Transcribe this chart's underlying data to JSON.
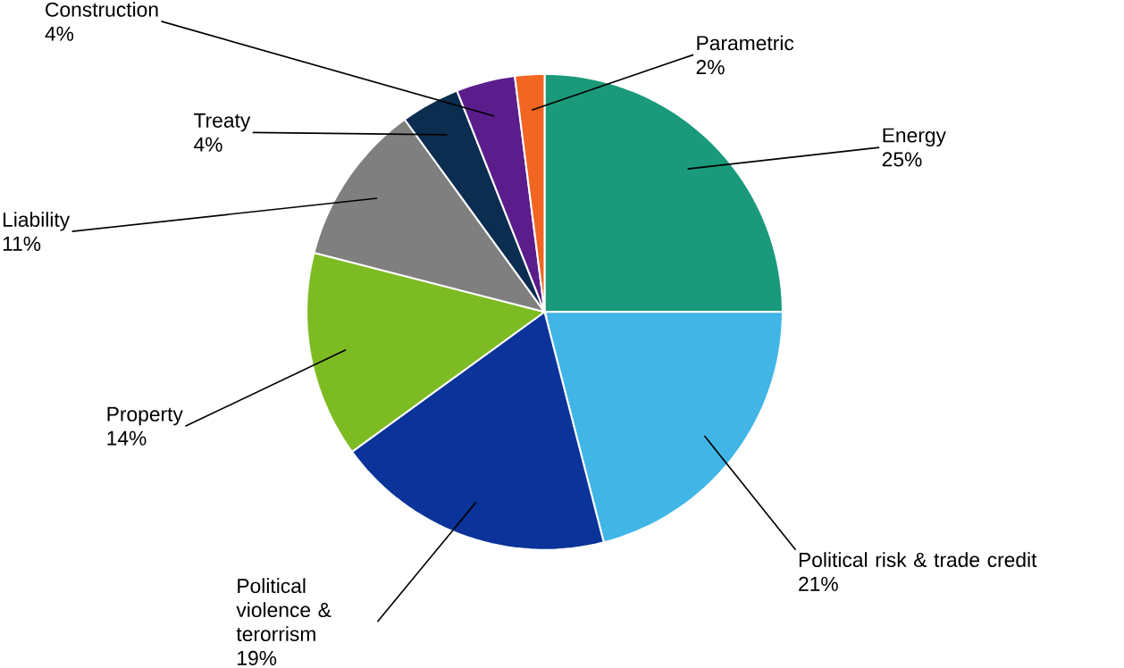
{
  "chart_data": {
    "type": "pie",
    "categories": [
      "Energy",
      "Political risk & trade credit",
      "Political violence & terorrism",
      "Property",
      "Liability",
      "Treaty",
      "Construction",
      "Parametric"
    ],
    "values": [
      25,
      21,
      19,
      14,
      11,
      4,
      4,
      2
    ],
    "value_labels": [
      "25%",
      "21%",
      "19%",
      "14%",
      "11%",
      "4%",
      "4%",
      "2%"
    ],
    "colors": [
      "#1a9a7a",
      "#41b6e6",
      "#0b3399",
      "#7dbb23",
      "#7f7f7f",
      "#0b2d50",
      "#5b1d8c",
      "#f26522"
    ]
  }
}
